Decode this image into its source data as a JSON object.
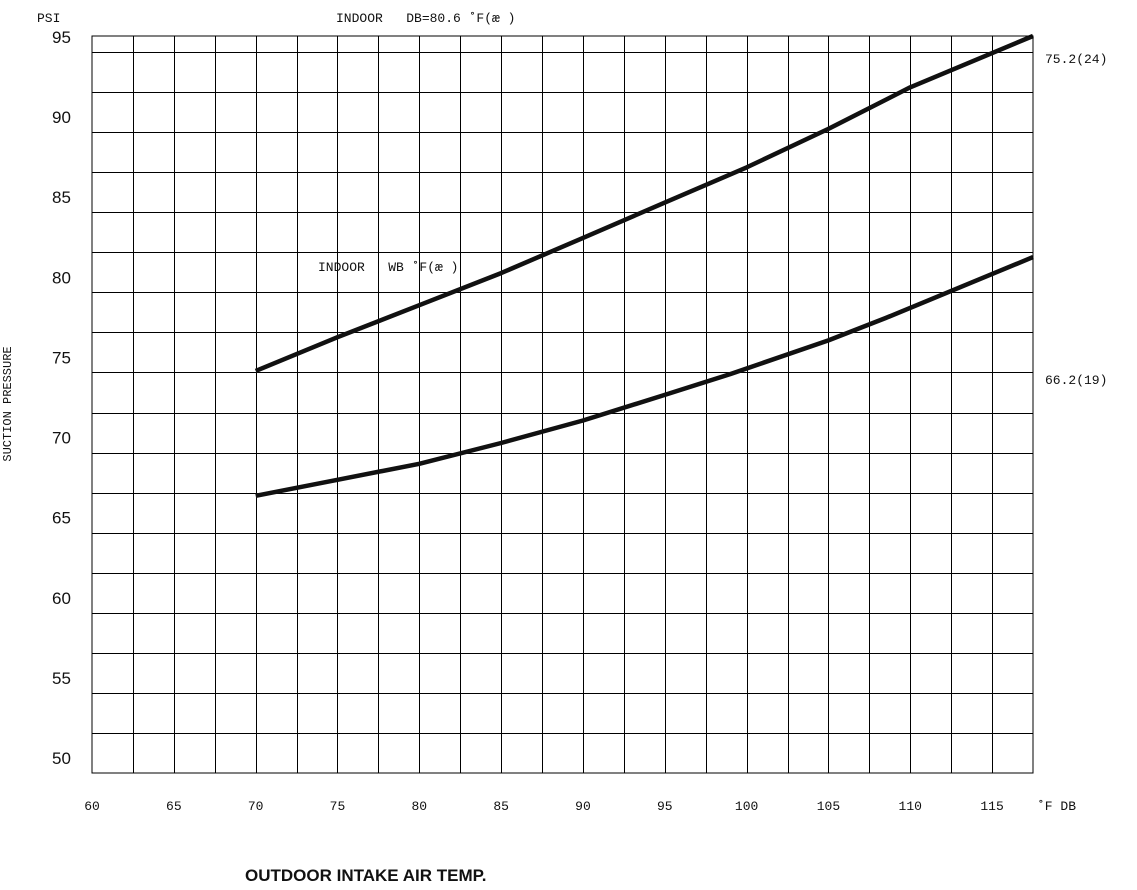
{
  "chart_data": {
    "type": "line",
    "title": "INDOOR   DB=80.6 ˚F(æ )",
    "xlabel": "OUTDOOR INTAKE AIR TEMP.",
    "x_unit_label": "˚F DB",
    "ylabel": "SUCTION PRESSURE",
    "y_unit_label": "PSI",
    "series_group_label": "INDOOR   WB ˚F(æ )",
    "xlim": [
      60,
      117.5
    ],
    "ylim": [
      49,
      95
    ],
    "x_ticks": [
      60,
      65,
      70,
      75,
      80,
      85,
      90,
      95,
      100,
      105,
      110,
      115
    ],
    "y_ticks": [
      50,
      55,
      60,
      65,
      70,
      75,
      80,
      85,
      90,
      95
    ],
    "x_grid_step": 2.5,
    "y_grid_step": 2.5,
    "grid": true,
    "legend": "right",
    "series": [
      {
        "name": "75.2(24)",
        "x": [
          70,
          75,
          80,
          85,
          90,
          95,
          100,
          105,
          110,
          117.5
        ],
        "y": [
          74.1,
          76.2,
          78.2,
          80.2,
          82.4,
          84.6,
          86.8,
          89.2,
          91.8,
          95.0
        ]
      },
      {
        "name": "66.2(19)",
        "x": [
          70,
          75,
          80,
          85,
          90,
          95,
          99,
          105,
          108.5,
          117.5
        ],
        "y": [
          66.3,
          67.3,
          68.3,
          69.6,
          71.0,
          72.6,
          73.9,
          76.0,
          77.4,
          81.2
        ]
      }
    ]
  }
}
